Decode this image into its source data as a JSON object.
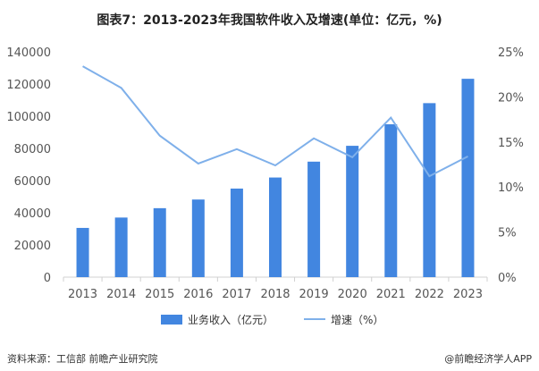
{
  "title": "图表7：2013-2023年我国软件收入及增速(单位：亿元，%)",
  "source": "资料来源：工信部 前瞻产业研究院",
  "brand": "@前瞻经济学人APP",
  "colors": {
    "bar": "#4286e0",
    "line": "#7fb0ea"
  },
  "chart_data": {
    "type": "bar+line",
    "categories": [
      "2013",
      "2014",
      "2015",
      "2016",
      "2017",
      "2018",
      "2019",
      "2020",
      "2021",
      "2022",
      "2023"
    ],
    "series": [
      {
        "name": "业务收入（亿元）",
        "type": "bar",
        "axis": "left",
        "values": [
          30587,
          37026,
          42848,
          48232,
          55037,
          61909,
          71768,
          81616,
          94994,
          108126,
          123258
        ]
      },
      {
        "name": "增速（%）",
        "type": "line",
        "axis": "right",
        "values": [
          23.4,
          21.0,
          15.7,
          12.6,
          14.2,
          12.4,
          15.4,
          13.3,
          17.7,
          11.2,
          13.4
        ]
      }
    ],
    "ylim_left": [
      0,
      140000
    ],
    "yticks_left": [
      "0",
      "20000",
      "40000",
      "60000",
      "80000",
      "100000",
      "120000",
      "140000"
    ],
    "ylim_right": [
      0,
      25
    ],
    "yticks_right": [
      "0%",
      "5%",
      "10%",
      "15%",
      "20%",
      "25%"
    ],
    "grid": false,
    "legend": "bottom"
  }
}
